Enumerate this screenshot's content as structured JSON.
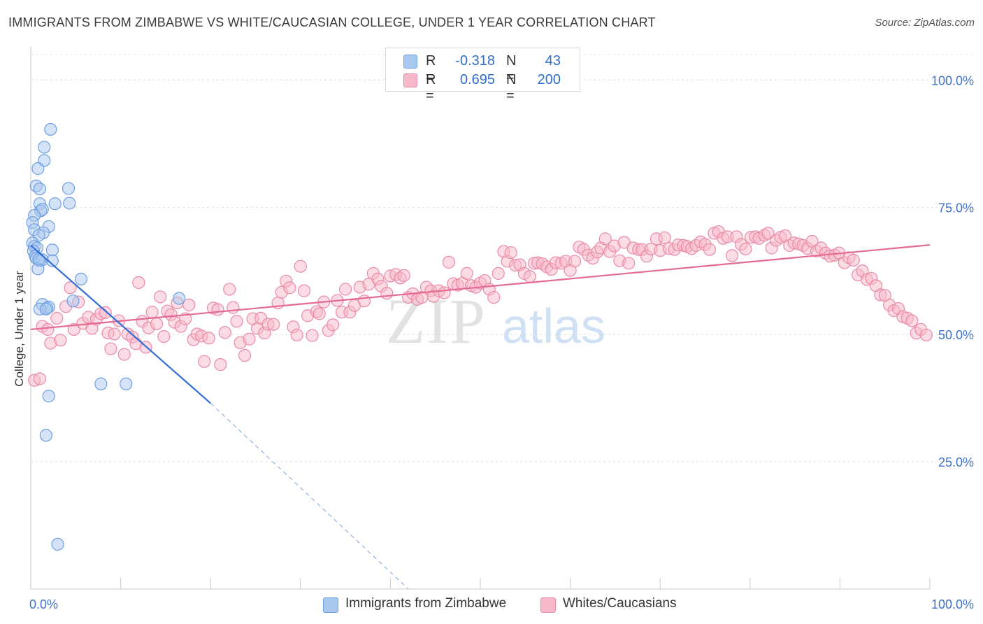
{
  "title": "IMMIGRANTS FROM ZIMBABWE VS WHITE/CAUCASIAN COLLEGE, UNDER 1 YEAR CORRELATION CHART",
  "source": "Source: ZipAtlas.com",
  "watermark": {
    "zip": "ZIP",
    "atlas": "atlas"
  },
  "legend": {
    "rows": [
      {
        "r_label": "R =",
        "r_value": "-0.318",
        "n_label": "N =",
        "n_value": "43",
        "color": "#a9c8f0",
        "stroke": "#6e9fe0"
      },
      {
        "r_label": "R =",
        "r_value": "0.695",
        "n_label": "N =",
        "n_value": "200",
        "color": "#f7b8ca",
        "stroke": "#e98aa7"
      }
    ]
  },
  "bottom_legend": [
    {
      "label": "Immigrants from Zimbabwe",
      "color": "#a9c8f0",
      "stroke": "#6e9fe0"
    },
    {
      "label": "Whites/Caucasians",
      "color": "#f7b8ca",
      "stroke": "#e98aa7"
    }
  ],
  "chart_data": {
    "type": "scatter",
    "title": "IMMIGRANTS FROM ZIMBABWE VS WHITE/CAUCASIAN COLLEGE, UNDER 1 YEAR CORRELATION CHART",
    "xlabel": "",
    "ylabel": "College, Under 1 year",
    "xlim": [
      0,
      100
    ],
    "ylim": [
      0,
      105
    ],
    "x_tick_labels": [
      "0.0%",
      "100.0%"
    ],
    "y_ticks": [
      25,
      50,
      75,
      100
    ],
    "y_tick_labels": [
      "25.0%",
      "50.0%",
      "75.0%",
      "100.0%"
    ],
    "grid": true,
    "legend_position": "top-center",
    "series": [
      {
        "name": "Immigrants from Zimbabwe",
        "color": "#a9c8f0",
        "stroke": "#6e9fe0",
        "trend": {
          "x0": 0,
          "y0": 67.5,
          "x1": 20,
          "y1": 36.5,
          "dash_x1": 42,
          "dash_y1": 0,
          "color": "#2f6fd6"
        },
        "points": [
          [
            2.2,
            90.3
          ],
          [
            1.5,
            86.8
          ],
          [
            1.5,
            84.2
          ],
          [
            0.8,
            82.6
          ],
          [
            0.6,
            79.2
          ],
          [
            1.0,
            78.6
          ],
          [
            4.2,
            78.7
          ],
          [
            1.0,
            75.7
          ],
          [
            4.3,
            75.8
          ],
          [
            2.7,
            75.7
          ],
          [
            1.1,
            74.3
          ],
          [
            1.3,
            74.6
          ],
          [
            0.4,
            73.4
          ],
          [
            0.2,
            72.0
          ],
          [
            0.4,
            70.6
          ],
          [
            2.0,
            71.2
          ],
          [
            1.4,
            70.0
          ],
          [
            0.9,
            69.5
          ],
          [
            0.2,
            68.0
          ],
          [
            0.4,
            67.3
          ],
          [
            0.7,
            67.0
          ],
          [
            2.4,
            66.6
          ],
          [
            0.3,
            66.4
          ],
          [
            0.5,
            65.4
          ],
          [
            0.6,
            65.0
          ],
          [
            1.0,
            64.5
          ],
          [
            1.3,
            64.7
          ],
          [
            2.4,
            64.5
          ],
          [
            0.8,
            62.9
          ],
          [
            5.6,
            60.9
          ],
          [
            4.7,
            56.6
          ],
          [
            16.5,
            57.1
          ],
          [
            1.3,
            55.9
          ],
          [
            1.8,
            55.2
          ],
          [
            2.0,
            55.4
          ],
          [
            1.0,
            55.0
          ],
          [
            1.7,
            55.0
          ],
          [
            7.8,
            40.3
          ],
          [
            10.6,
            40.3
          ],
          [
            2.0,
            37.9
          ],
          [
            1.7,
            30.2
          ],
          [
            3.0,
            8.8
          ],
          [
            0.9,
            64.8
          ]
        ]
      },
      {
        "name": "Whites/Caucasians",
        "color": "#f7b8ca",
        "stroke": "#e98aa7",
        "trend": {
          "x0": 0,
          "y0": 51.0,
          "x1": 100,
          "y1": 67.6,
          "color": "#e46b93"
        },
        "points": [
          [
            0.4,
            41.0
          ],
          [
            1.0,
            41.3
          ],
          [
            1.3,
            51.6
          ],
          [
            1.9,
            51.0
          ],
          [
            2.2,
            48.3
          ],
          [
            2.9,
            53.2
          ],
          [
            3.3,
            48.9
          ],
          [
            3.9,
            55.5
          ],
          [
            4.4,
            59.2
          ],
          [
            4.8,
            51.0
          ],
          [
            5.3,
            56.4
          ],
          [
            5.8,
            52.2
          ],
          [
            6.4,
            53.4
          ],
          [
            6.8,
            51.2
          ],
          [
            7.3,
            53.0
          ],
          [
            7.8,
            54.1
          ],
          [
            8.3,
            54.3
          ],
          [
            8.6,
            50.3
          ],
          [
            8.9,
            47.2
          ],
          [
            9.3,
            50.1
          ],
          [
            9.8,
            52.7
          ],
          [
            10.4,
            46.1
          ],
          [
            10.8,
            50.1
          ],
          [
            11.3,
            49.5
          ],
          [
            11.7,
            48.2
          ],
          [
            12.0,
            60.2
          ],
          [
            12.4,
            52.6
          ],
          [
            12.8,
            47.5
          ],
          [
            13.1,
            51.3
          ],
          [
            13.5,
            54.4
          ],
          [
            14.0,
            52.1
          ],
          [
            14.4,
            57.4
          ],
          [
            14.8,
            49.6
          ],
          [
            15.2,
            54.6
          ],
          [
            15.6,
            53.9
          ],
          [
            16.0,
            52.4
          ],
          [
            16.3,
            56.2
          ],
          [
            16.7,
            51.6
          ],
          [
            17.2,
            53.1
          ],
          [
            17.6,
            55.8
          ],
          [
            18.1,
            49.0
          ],
          [
            18.5,
            50.1
          ],
          [
            19.0,
            49.7
          ],
          [
            19.3,
            44.7
          ],
          [
            19.8,
            49.3
          ],
          [
            20.3,
            55.2
          ],
          [
            20.8,
            54.9
          ],
          [
            21.1,
            44.1
          ],
          [
            21.6,
            50.4
          ],
          [
            22.1,
            58.9
          ],
          [
            22.5,
            55.3
          ],
          [
            22.9,
            52.6
          ],
          [
            23.3,
            48.4
          ],
          [
            23.8,
            45.9
          ],
          [
            24.3,
            49.1
          ],
          [
            24.7,
            53.1
          ],
          [
            25.2,
            51.2
          ],
          [
            25.6,
            53.2
          ],
          [
            26.0,
            50.3
          ],
          [
            26.4,
            52.0
          ],
          [
            27.0,
            52.0
          ],
          [
            27.5,
            56.2
          ],
          [
            27.9,
            58.3
          ],
          [
            28.4,
            60.5
          ],
          [
            28.8,
            59.2
          ],
          [
            29.2,
            51.5
          ],
          [
            29.6,
            49.9
          ],
          [
            30.0,
            63.4
          ],
          [
            30.4,
            58.6
          ],
          [
            30.8,
            53.7
          ],
          [
            31.3,
            49.8
          ],
          [
            31.8,
            54.5
          ],
          [
            32.1,
            54.1
          ],
          [
            32.6,
            56.4
          ],
          [
            33.1,
            50.8
          ],
          [
            33.6,
            51.9
          ],
          [
            34.1,
            56.7
          ],
          [
            34.6,
            54.4
          ],
          [
            35.0,
            58.9
          ],
          [
            35.5,
            54.4
          ],
          [
            36.0,
            55.7
          ],
          [
            36.6,
            59.3
          ],
          [
            37.1,
            56.6
          ],
          [
            37.6,
            59.9
          ],
          [
            38.1,
            62.0
          ],
          [
            38.6,
            60.9
          ],
          [
            39.0,
            59.5
          ],
          [
            39.6,
            58.1
          ],
          [
            40.0,
            61.5
          ],
          [
            40.6,
            61.8
          ],
          [
            41.1,
            61.1
          ],
          [
            41.5,
            61.6
          ],
          [
            42.0,
            57.3
          ],
          [
            42.5,
            58.0
          ],
          [
            43.0,
            56.9
          ],
          [
            43.5,
            57.3
          ],
          [
            44.0,
            59.3
          ],
          [
            44.5,
            58.6
          ],
          [
            44.8,
            57.5
          ],
          [
            45.4,
            58.6
          ],
          [
            46.0,
            58.2
          ],
          [
            46.5,
            64.2
          ],
          [
            47.0,
            60.0
          ],
          [
            47.5,
            59.7
          ],
          [
            48.0,
            60.1
          ],
          [
            48.5,
            62.0
          ],
          [
            49.0,
            59.6
          ],
          [
            49.5,
            59.3
          ],
          [
            50.0,
            60.1
          ],
          [
            50.5,
            60.6
          ],
          [
            51.0,
            58.9
          ],
          [
            51.5,
            57.3
          ],
          [
            52.0,
            62.0
          ],
          [
            52.6,
            66.3
          ],
          [
            53.0,
            64.4
          ],
          [
            53.4,
            66.1
          ],
          [
            53.9,
            63.6
          ],
          [
            54.4,
            63.7
          ],
          [
            54.9,
            62.0
          ],
          [
            55.5,
            61.4
          ],
          [
            56.0,
            64.0
          ],
          [
            56.4,
            64.1
          ],
          [
            56.9,
            63.9
          ],
          [
            57.4,
            63.3
          ],
          [
            57.9,
            62.8
          ],
          [
            58.4,
            64.1
          ],
          [
            59.0,
            64.0
          ],
          [
            59.5,
            64.4
          ],
          [
            60.0,
            62.6
          ],
          [
            60.5,
            64.4
          ],
          [
            61.0,
            67.2
          ],
          [
            61.5,
            66.7
          ],
          [
            62.0,
            65.6
          ],
          [
            62.5,
            65.0
          ],
          [
            63.0,
            66.2
          ],
          [
            63.4,
            67.0
          ],
          [
            63.9,
            68.8
          ],
          [
            64.4,
            66.3
          ],
          [
            64.9,
            67.4
          ],
          [
            65.5,
            64.5
          ],
          [
            66.0,
            68.1
          ],
          [
            66.5,
            64.0
          ],
          [
            67.0,
            67.0
          ],
          [
            67.6,
            66.7
          ],
          [
            68.0,
            66.7
          ],
          [
            68.5,
            65.4
          ],
          [
            69.0,
            66.8
          ],
          [
            69.6,
            68.8
          ],
          [
            70.0,
            66.5
          ],
          [
            70.5,
            69.0
          ],
          [
            71.0,
            66.9
          ],
          [
            71.6,
            66.7
          ],
          [
            72.0,
            67.6
          ],
          [
            72.6,
            67.5
          ],
          [
            73.0,
            67.3
          ],
          [
            73.5,
            66.9
          ],
          [
            74.0,
            67.5
          ],
          [
            74.5,
            68.2
          ],
          [
            75.0,
            67.7
          ],
          [
            75.5,
            66.7
          ],
          [
            76.0,
            69.9
          ],
          [
            76.5,
            70.2
          ],
          [
            77.0,
            68.9
          ],
          [
            77.5,
            69.2
          ],
          [
            78.0,
            65.5
          ],
          [
            78.5,
            69.2
          ],
          [
            79.0,
            67.7
          ],
          [
            79.5,
            66.8
          ],
          [
            80.1,
            69.1
          ],
          [
            80.6,
            69.2
          ],
          [
            81.0,
            68.9
          ],
          [
            81.6,
            69.5
          ],
          [
            82.0,
            69.9
          ],
          [
            82.4,
            67.0
          ],
          [
            82.9,
            68.5
          ],
          [
            83.4,
            69.1
          ],
          [
            83.9,
            69.4
          ],
          [
            84.4,
            67.5
          ],
          [
            84.9,
            68.0
          ],
          [
            85.4,
            67.8
          ],
          [
            85.9,
            67.5
          ],
          [
            86.4,
            66.9
          ],
          [
            86.9,
            68.3
          ],
          [
            87.4,
            66.4
          ],
          [
            87.9,
            67.0
          ],
          [
            88.4,
            66.0
          ],
          [
            88.9,
            65.4
          ],
          [
            89.4,
            65.6
          ],
          [
            89.9,
            66.0
          ],
          [
            90.5,
            64.1
          ],
          [
            91.0,
            65.1
          ],
          [
            91.5,
            64.6
          ],
          [
            92.0,
            61.7
          ],
          [
            92.5,
            62.5
          ],
          [
            93.0,
            60.8
          ],
          [
            93.5,
            61.0
          ],
          [
            94.0,
            59.6
          ],
          [
            94.5,
            57.8
          ],
          [
            95.0,
            57.7
          ],
          [
            95.5,
            55.8
          ],
          [
            96.0,
            54.7
          ],
          [
            96.5,
            55.1
          ],
          [
            97.0,
            53.5
          ],
          [
            97.5,
            53.2
          ],
          [
            98.0,
            52.7
          ],
          [
            98.5,
            50.3
          ],
          [
            99.0,
            51.0
          ],
          [
            99.6,
            49.9
          ]
        ]
      }
    ]
  }
}
